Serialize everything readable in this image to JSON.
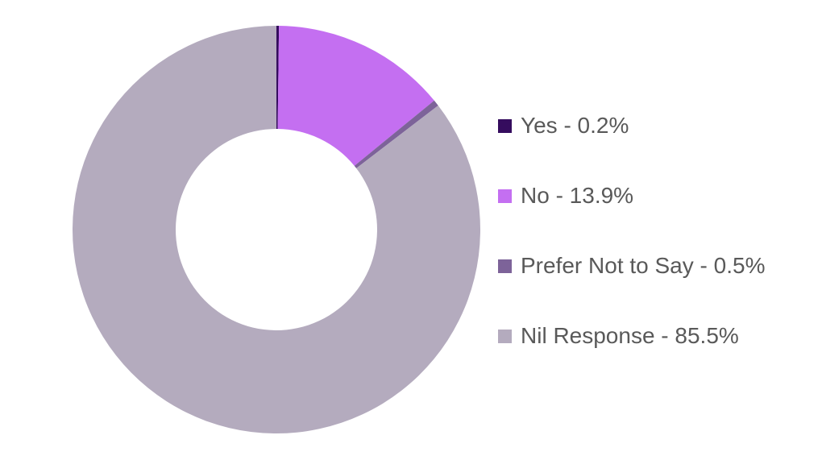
{
  "chart_data": {
    "type": "pie",
    "subtype": "donut",
    "title": "",
    "categories": [
      "Yes",
      "No",
      "Prefer Not to Say",
      "Nil Response"
    ],
    "values": [
      0.2,
      13.9,
      0.5,
      85.5
    ],
    "colors": [
      "#350C5E",
      "#C46FF1",
      "#7D6399",
      "#B4ABBE"
    ],
    "start_angle_deg": 0,
    "direction": "clockwise",
    "inner_radius_ratio": 0.494,
    "legend_position": "right",
    "background_color": "#FFFFFF"
  },
  "legend": {
    "text_color": "#595959",
    "items": [
      {
        "label": "Yes - 0.2%",
        "color": "#350C5E"
      },
      {
        "label": "No - 13.9%",
        "color": "#C46FF1"
      },
      {
        "label": "Prefer Not to Say - 0.5%",
        "color": "#7D6399"
      },
      {
        "label": "Nil Response - 85.5%",
        "color": "#B4ABBE"
      }
    ]
  }
}
